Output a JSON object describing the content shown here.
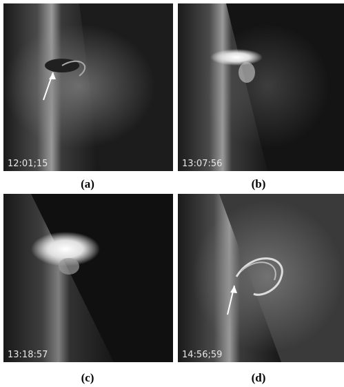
{
  "panels": [
    {
      "timestamp": "12:01;15",
      "caption": "(a)"
    },
    {
      "timestamp": "13:07:56",
      "caption": "(b)"
    },
    {
      "timestamp": "13:18:57",
      "caption": "(c)"
    },
    {
      "timestamp": "14:56;59",
      "caption": "(d)"
    }
  ]
}
